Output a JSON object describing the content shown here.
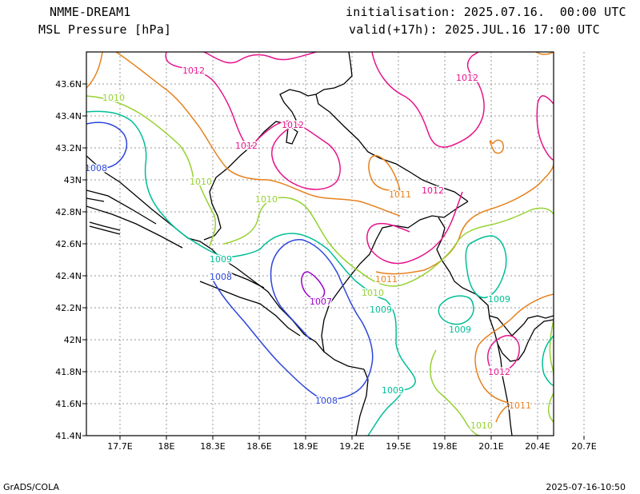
{
  "header": {
    "model": "NMME-DREAM1",
    "field": "MSL Pressure [hPa]",
    "init": "initialisation: 2025.07.16.  00:00 UTC",
    "valid": "valid(+17h): 2025.JUL.16 17:00 UTC"
  },
  "footer": {
    "left": "GrADS/COLA",
    "right": "2025-07-16-10:50"
  },
  "map": {
    "lon_ticks": [
      "17.7E",
      "18E",
      "18.3E",
      "18.6E",
      "18.9E",
      "19.2E",
      "19.5E",
      "19.8E",
      "20.1E",
      "20.4E",
      "20.7E"
    ],
    "lat_ticks": [
      "43.6N",
      "43.4N",
      "43.2N",
      "43N",
      "42.8N",
      "42.6N",
      "42.4N",
      "42.2N",
      "42N",
      "41.8N",
      "41.6N",
      "41.4N"
    ],
    "contour_colors": {
      "1007": "#9a00c8",
      "1008": "#2c46dc",
      "1009": "#00be96",
      "1010": "#96d232",
      "1011": "#e6821e",
      "1012": "#e6148c"
    },
    "contour_labels": [
      {
        "text": "1012",
        "level": "1012"
      },
      {
        "text": "1012",
        "level": "1012"
      },
      {
        "text": "1012",
        "level": "1012"
      },
      {
        "text": "1012",
        "level": "1012"
      },
      {
        "text": "1012",
        "level": "1012"
      },
      {
        "text": "1012",
        "level": "1012"
      },
      {
        "text": "1010",
        "level": "1010"
      },
      {
        "text": "1010",
        "level": "1010"
      },
      {
        "text": "1010",
        "level": "1010"
      },
      {
        "text": "1010",
        "level": "1010"
      },
      {
        "text": "1010",
        "level": "1010"
      },
      {
        "text": "1008",
        "level": "1008"
      },
      {
        "text": "1008",
        "level": "1008"
      },
      {
        "text": "1008",
        "level": "1008"
      },
      {
        "text": "1009",
        "level": "1009"
      },
      {
        "text": "1009",
        "level": "1009"
      },
      {
        "text": "1009",
        "level": "1009"
      },
      {
        "text": "1009",
        "level": "1009"
      },
      {
        "text": "1009",
        "level": "1009"
      },
      {
        "text": "1007",
        "level": "1007"
      },
      {
        "text": "1011",
        "level": "1011"
      },
      {
        "text": "1011",
        "level": "1011"
      },
      {
        "text": "1011",
        "level": "1011"
      }
    ]
  }
}
